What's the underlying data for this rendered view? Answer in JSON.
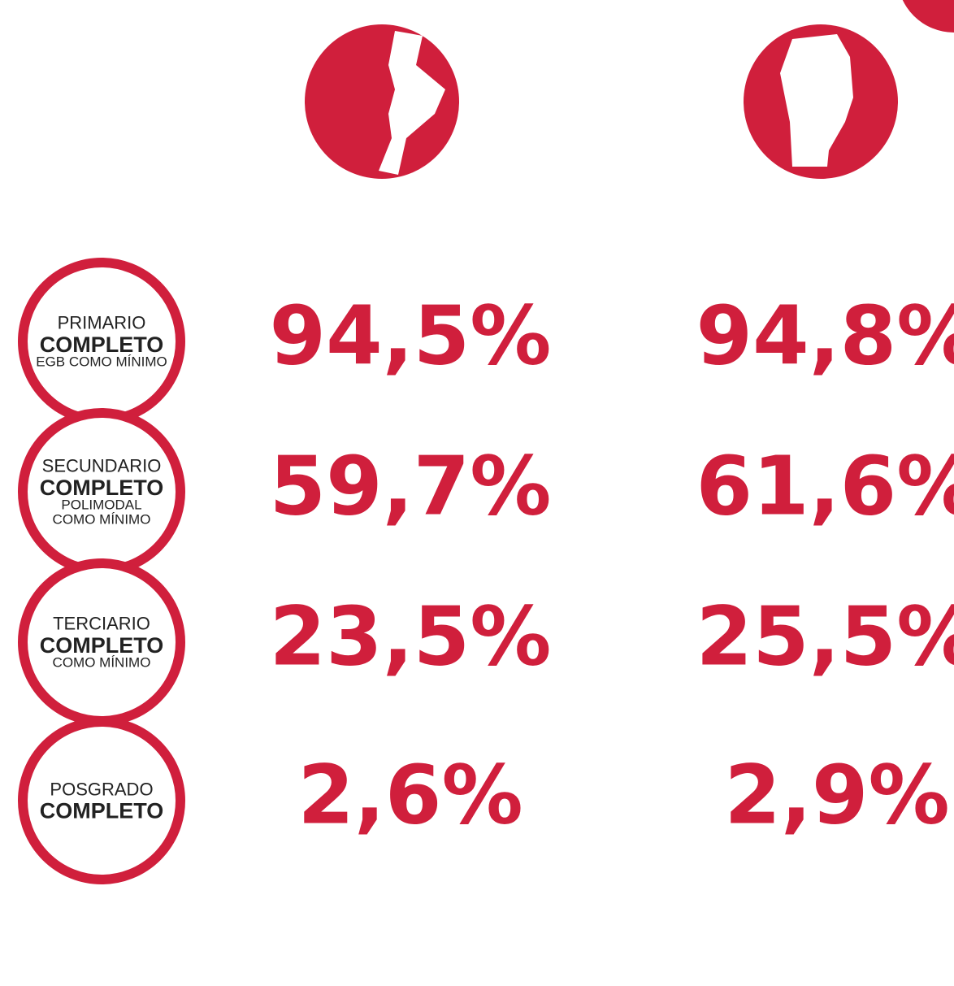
{
  "rows": [
    {
      "lines": [
        "PRIMARIO",
        "COMPLETO",
        "EGB COMO MÍNIMO"
      ],
      "values": [
        "94,5%",
        "94,8%"
      ]
    },
    {
      "lines": [
        "SECUNDARIO",
        "COMPLETO",
        "POLIMODAL",
        "COMO MÍNIMO"
      ],
      "values": [
        "59,7%",
        "61,6%"
      ]
    },
    {
      "lines": [
        "TERCIARIO",
        "COMPLETO",
        "COMO MÍNIMO"
      ],
      "values": [
        "23,5%",
        "25,5%"
      ]
    },
    {
      "lines": [
        "POSGRADO",
        "COMPLETO"
      ],
      "values": [
        "2,6%",
        "2,9%"
      ]
    }
  ]
}
